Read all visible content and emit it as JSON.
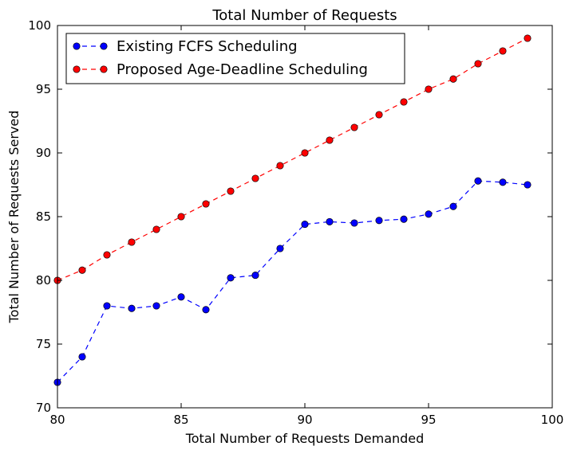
{
  "chart_data": {
    "type": "line",
    "title": "Total Number of Requests",
    "xlabel": "Total Number of Requests Demanded",
    "ylabel": "Total Number of Requests Served",
    "xlim": [
      80,
      100
    ],
    "ylim": [
      70,
      100
    ],
    "xticks": [
      80,
      85,
      90,
      95,
      100
    ],
    "yticks": [
      70,
      75,
      80,
      85,
      90,
      95,
      100
    ],
    "grid": false,
    "legend_position": "top-left",
    "x": [
      80,
      81,
      82,
      83,
      84,
      85,
      86,
      87,
      88,
      89,
      90,
      91,
      92,
      93,
      94,
      95,
      96,
      97,
      98,
      99
    ],
    "series": [
      {
        "name": "Existing FCFS Scheduling",
        "color": "#0000ff",
        "line_style": "dashed",
        "marker": "circle",
        "values": [
          72.0,
          74.0,
          78.0,
          77.8,
          78.0,
          78.7,
          77.7,
          80.2,
          80.4,
          82.5,
          84.4,
          84.6,
          84.5,
          84.7,
          84.8,
          85.2,
          85.8,
          87.8,
          87.7,
          87.5
        ]
      },
      {
        "name": "Proposed Age-Deadline Scheduling",
        "color": "#ff0000",
        "line_style": "dashed",
        "marker": "circle",
        "values": [
          80.0,
          80.8,
          82.0,
          83.0,
          84.0,
          85.0,
          86.0,
          87.0,
          88.0,
          89.0,
          90.0,
          91.0,
          92.0,
          93.0,
          94.0,
          95.0,
          95.8,
          97.0,
          98.0,
          99.0
        ]
      }
    ]
  }
}
